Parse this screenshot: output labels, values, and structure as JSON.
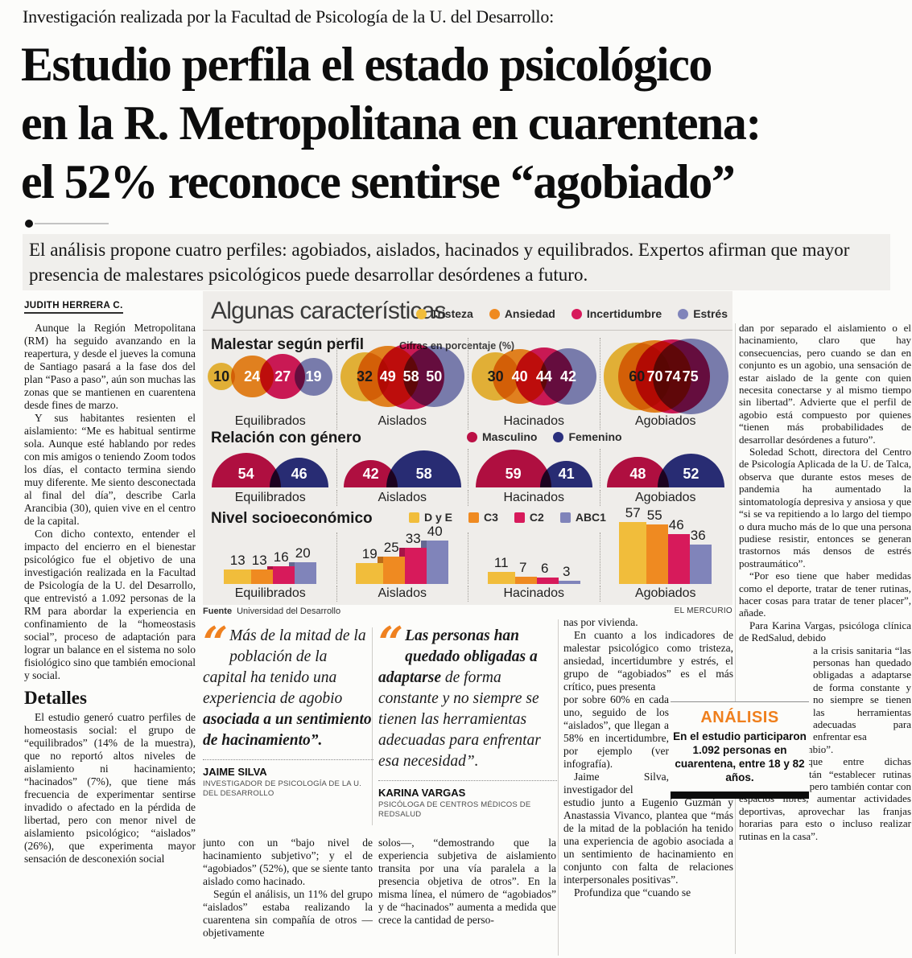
{
  "masthead": {
    "kicker": "Investigación realizada por la Facultad de Psicología de la U. del Desarrollo:",
    "headline_lines": [
      "Estudio perfila el estado psicológico",
      "en la R. Metropolitana en cuarentena:",
      "el 52% reconoce sentirse “agobiado”"
    ],
    "deck": "El análisis propone cuatro perfiles: agobiados, aislados, hacinados y equilibrados. Expertos afirman que mayor presencia de malestares psicológicos puede desarrollar desórdenes a futuro.",
    "byline": "JUDITH HERRERA C."
  },
  "infographic": {
    "title": "Algunas características",
    "note": "Cifras en porcentaje (%)",
    "section_malestar": "Malestar según perfil",
    "section_genero": "Relación con género",
    "section_nse": "Nivel socioeconómico",
    "source_label": "Fuente",
    "source": "Universidad del Desarrollo",
    "credit": "EL MERCURIO"
  },
  "chart_data": [
    {
      "type": "bubble",
      "title": "Malestar según perfil",
      "note": "Cifras en porcentaje (%)",
      "unit": "percent",
      "categories": [
        "Equilibrados",
        "Aislados",
        "Hacinados",
        "Agobiados"
      ],
      "series": [
        {
          "name": "Tristeza",
          "color": "#f1bd3b",
          "values": [
            10,
            32,
            30,
            60
          ]
        },
        {
          "name": "Ansiedad",
          "color": "#ef8a21",
          "values": [
            24,
            49,
            40,
            70
          ]
        },
        {
          "name": "Incertidumbre",
          "color": "#d71a5b",
          "values": [
            27,
            58,
            44,
            74
          ]
        },
        {
          "name": "Estrés",
          "color": "#8084ba",
          "values": [
            19,
            50,
            42,
            75
          ]
        }
      ]
    },
    {
      "type": "semicircle",
      "title": "Relación con género",
      "unit": "percent",
      "categories": [
        "Equilibrados",
        "Aislados",
        "Hacinados",
        "Agobiados"
      ],
      "series": [
        {
          "name": "Masculino",
          "color": "#bb1045",
          "values": [
            54,
            42,
            59,
            48
          ]
        },
        {
          "name": "Femenino",
          "color": "#2a2f7d",
          "values": [
            46,
            58,
            41,
            52
          ]
        }
      ]
    },
    {
      "type": "bar",
      "title": "Nivel socioeconómico",
      "unit": "percent",
      "categories": [
        "Equilibrados",
        "Aislados",
        "Hacinados",
        "Agobiados"
      ],
      "series": [
        {
          "name": "D y E",
          "color": "#f1bd3b",
          "values": [
            13,
            19,
            11,
            57
          ]
        },
        {
          "name": "C3",
          "color": "#ef8a21",
          "values": [
            13,
            25,
            7,
            55
          ]
        },
        {
          "name": "C2",
          "color": "#d71a5b",
          "values": [
            16,
            33,
            6,
            46
          ]
        },
        {
          "name": "ABC1",
          "color": "#8084ba",
          "values": [
            20,
            40,
            3,
            36
          ]
        }
      ]
    }
  ],
  "article": {
    "col1": [
      "Aunque la Región Metropolitana (RM) ha seguido avanzando en la reapertura, y desde el jueves la comuna de Santiago pasará a la fase dos del plan “Paso a paso”, aún son muchas las zonas que se mantienen en cuarentena desde fines de marzo.",
      "Y sus habitantes resienten el aislamiento: “Me es habitual sentirme sola. Aunque esté hablando por redes con mis amigos o teniendo Zoom todos los días, el contacto termina siendo muy diferente. Me siento desconectada al final del día”, describe Carla Arancibia (30), quien vive en el centro de la capital.",
      "Con dicho contexto, entender el impacto del encierro en el bienestar psicológico fue el objetivo de una investigación realizada en la Facultad de Psicología de la U. del Desarrollo, que entrevistó a 1.092 personas de la RM para abordar la experiencia en confinamiento de la “homeostasis social”, proceso de adaptación para lograr un balance en el sistema no solo fisiológico sino que también emocional y social."
    ],
    "detalles_heading": "Detalles",
    "col1b": [
      "El estudio generó cuatro perfiles de homeostasis social: el grupo de “equilibrados” (14% de la muestra), que no reportó altos niveles de aislamiento ni hacinamiento; “hacinados” (7%), que tiene más frecuencia de experimentar sentirse invadido o afectado en la pérdida de libertad, pero con menor nivel de aislamiento psicológico; “aislados” (26%), que experimenta mayor sensación de desconexión social"
    ],
    "col2": [
      "junto con un “bajo nivel de hacinamiento subjetivo”; y el de “agobiados” (52%), que se siente tanto aislado como hacinado.",
      "Según el análisis, un 11% del grupo “aislados” estaba realizando la cuarentena sin compañía de otros —objetivamente"
    ],
    "col3": [
      "solos—, “demostrando que la experiencia subjetiva de aislamiento transita por una vía paralela a la presencia objetiva de otros”. En la misma línea, el número de “agobiados” y de “hacinados” aumenta a medida que crece la cantidad de perso-"
    ],
    "col4": {
      "part1": [
        "nas por vivienda.",
        "En cuanto a los indicadores de malestar psicológico como tristeza, ansiedad, incertidumbre y estrés, el grupo de “agobiados” es el más crítico, pues presenta"
      ],
      "part2": [
        "por sobre 60% en cada uno, seguido de los “aislados”, que llegan a 58% en incertidumbre, por ejemplo (ver infografía).",
        "Jaime Silva, investigador del"
      ],
      "part3": [
        "estudio junto a Eugenio Guzmán y Anastassia Vivanco, plantea que “más de la mitad de la población ha tenido una experiencia de agobio asociada a un sentimiento de hacinamiento en conjunto con falta de relaciones interpersonales positivas”.",
        "Profundiza que “cuando se"
      ]
    },
    "col5": {
      "part1": [
        "dan por separado el aislamiento o el hacinamiento, claro que hay consecuencias, pero cuando se dan en conjunto es un agobio, una sensación de estar aislado de la gente con quien necesita conectarse y al mismo tiempo sin libertad”. Advierte que el perfil de agobio está compuesto por quienes “tienen más probabilidades de desarrollar desórdenes a futuro”.",
        "Soledad Schott, directora del Centro de Psicología Aplicada de la U. de Talca, observa que durante estos meses de pandemia ha aumentado la sintomatología depresiva y ansiosa y que “si se va repitiendo a lo largo del tiempo o dura mucho más de lo que una persona pudiese resistir, entonces se generan trastornos más densos de estrés postraumático”.",
        "“Por eso tiene que haber medidas como el deporte, tratar de tener rutinas, hacer cosas para tratar de tener placer”, añade.",
        "Para Karina Vargas, psicóloga clínica de RedSalud, debido"
      ],
      "part2": [
        "a la crisis sanitaria “las personas han quedado obligadas a adaptarse de forma constante y no siempre se tienen las herramientas adecuadas para enfrentar esa"
      ],
      "part3": [
        "necesidad de cambio”.",
        "Comenta que entre dichas herramientas están “establecer rutinas tanto de trabajo, pero también contar con espacios libres, aumentar actividades deportivas, aprovechar las franjas horarias para esto o incluso realizar rutinas en la casa”."
      ]
    }
  },
  "quotes": [
    {
      "parts": [
        {
          "t": "Más de la mitad de la población de la capital ha tenido una experiencia de agobio ",
          "b": false
        },
        {
          "t": "asociada a un sentimiento de hacinamiento”.",
          "b": true
        }
      ],
      "name": "JAIME SILVA",
      "role": "INVESTIGADOR DE PSICOLOGÍA DE LA U. DEL DESARROLLO"
    },
    {
      "parts": [
        {
          "t": "Las personas han quedado obligadas a adaptarse",
          "b": true
        },
        {
          "t": " de forma constante y no siempre se tienen las herramientas adecuadas para enfrentar esa necesidad”.",
          "b": false
        }
      ],
      "name": "KARINA VARGAS",
      "role": "PSICÓLOGA DE CENTROS MÉDICOS DE REDSALUD"
    }
  ],
  "analysis": {
    "title": "ANÁLISIS",
    "text": "En el estudio participaron 1.092 personas en cuarentena, entre 18 y 82 años."
  }
}
